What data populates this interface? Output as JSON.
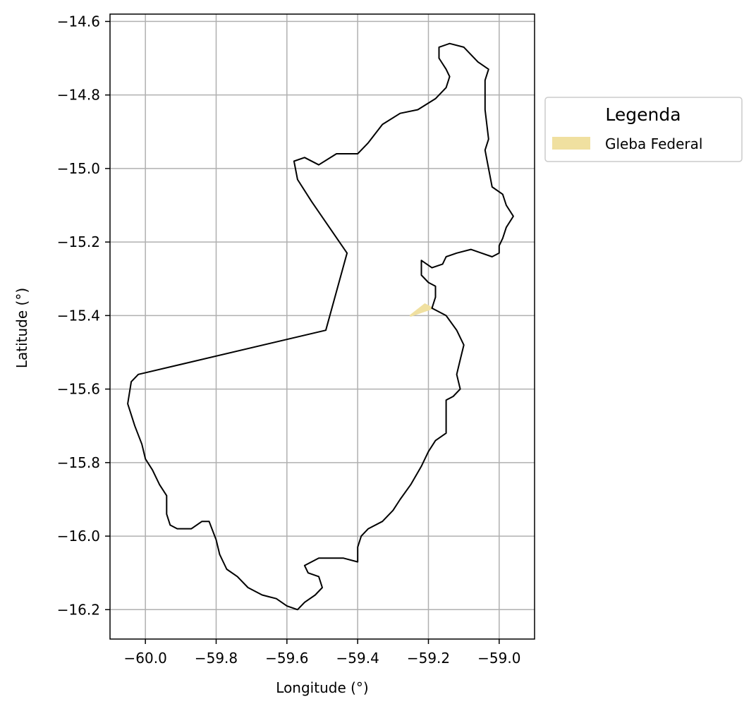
{
  "chart_data": {
    "type": "map",
    "xlabel": "Longitude (°)",
    "ylabel": "Latitude (°)",
    "xlim": [
      -60.1,
      -58.9
    ],
    "ylim": [
      -16.28,
      -14.58
    ],
    "grid": true,
    "x_ticks": [
      -60.0,
      -59.8,
      -59.6,
      -59.4,
      -59.2,
      -59.0
    ],
    "x_tick_labels": [
      "−60.0",
      "−59.8",
      "−59.6",
      "−59.4",
      "−59.2",
      "−59.0"
    ],
    "y_ticks": [
      -14.6,
      -14.8,
      -15.0,
      -15.2,
      -15.4,
      -15.6,
      -15.8,
      -16.0,
      -16.2
    ],
    "y_tick_labels": [
      "−14.6",
      "−14.8",
      "−15.0",
      "−15.2",
      "−15.4",
      "−15.6",
      "−15.8",
      "−16.0",
      "−16.2"
    ],
    "legend": {
      "title": "Legenda",
      "placement": "outside-right-top",
      "entries": [
        {
          "label": "Gleba Federal",
          "color": "#f0e0a0"
        }
      ]
    },
    "layers": [
      {
        "name": "boundary",
        "kind": "outline",
        "stroke": "#000000",
        "coords": [
          [
            -59.17,
            -14.67
          ],
          [
            -59.14,
            -14.66
          ],
          [
            -59.1,
            -14.67
          ],
          [
            -59.06,
            -14.71
          ],
          [
            -59.03,
            -14.73
          ],
          [
            -59.04,
            -14.76
          ],
          [
            -59.04,
            -14.84
          ],
          [
            -59.03,
            -14.92
          ],
          [
            -59.04,
            -14.95
          ],
          [
            -59.03,
            -15.0
          ],
          [
            -59.02,
            -15.05
          ],
          [
            -58.99,
            -15.07
          ],
          [
            -58.98,
            -15.1
          ],
          [
            -58.96,
            -15.13
          ],
          [
            -58.98,
            -15.16
          ],
          [
            -58.99,
            -15.19
          ],
          [
            -59.0,
            -15.21
          ],
          [
            -59.0,
            -15.23
          ],
          [
            -59.02,
            -15.24
          ],
          [
            -59.05,
            -15.23
          ],
          [
            -59.08,
            -15.22
          ],
          [
            -59.12,
            -15.23
          ],
          [
            -59.15,
            -15.24
          ],
          [
            -59.16,
            -15.26
          ],
          [
            -59.19,
            -15.27
          ],
          [
            -59.22,
            -15.25
          ],
          [
            -59.22,
            -15.29
          ],
          [
            -59.2,
            -15.31
          ],
          [
            -59.18,
            -15.32
          ],
          [
            -59.18,
            -15.35
          ],
          [
            -59.19,
            -15.38
          ],
          [
            -59.15,
            -15.4
          ],
          [
            -59.12,
            -15.44
          ],
          [
            -59.1,
            -15.48
          ],
          [
            -59.11,
            -15.52
          ],
          [
            -59.12,
            -15.56
          ],
          [
            -59.11,
            -15.6
          ],
          [
            -59.13,
            -15.62
          ],
          [
            -59.15,
            -15.63
          ],
          [
            -59.15,
            -15.66
          ],
          [
            -59.15,
            -15.72
          ],
          [
            -59.18,
            -15.74
          ],
          [
            -59.2,
            -15.77
          ],
          [
            -59.22,
            -15.81
          ],
          [
            -59.25,
            -15.86
          ],
          [
            -59.28,
            -15.9
          ],
          [
            -59.3,
            -15.93
          ],
          [
            -59.33,
            -15.96
          ],
          [
            -59.37,
            -15.98
          ],
          [
            -59.39,
            -16.0
          ],
          [
            -59.4,
            -16.03
          ],
          [
            -59.4,
            -16.07
          ],
          [
            -59.44,
            -16.06
          ],
          [
            -59.48,
            -16.06
          ],
          [
            -59.51,
            -16.06
          ],
          [
            -59.55,
            -16.08
          ],
          [
            -59.54,
            -16.1
          ],
          [
            -59.51,
            -16.11
          ],
          [
            -59.5,
            -16.14
          ],
          [
            -59.52,
            -16.16
          ],
          [
            -59.55,
            -16.18
          ],
          [
            -59.57,
            -16.2
          ],
          [
            -59.6,
            -16.19
          ],
          [
            -59.63,
            -16.17
          ],
          [
            -59.67,
            -16.16
          ],
          [
            -59.71,
            -16.14
          ],
          [
            -59.74,
            -16.11
          ],
          [
            -59.77,
            -16.09
          ],
          [
            -59.79,
            -16.05
          ],
          [
            -59.8,
            -16.01
          ],
          [
            -59.82,
            -15.96
          ],
          [
            -59.84,
            -15.96
          ],
          [
            -59.87,
            -15.98
          ],
          [
            -59.91,
            -15.98
          ],
          [
            -59.93,
            -15.97
          ],
          [
            -59.94,
            -15.94
          ],
          [
            -59.94,
            -15.89
          ],
          [
            -59.96,
            -15.86
          ],
          [
            -59.98,
            -15.82
          ],
          [
            -60.0,
            -15.79
          ],
          [
            -60.01,
            -15.75
          ],
          [
            -60.03,
            -15.7
          ],
          [
            -60.05,
            -15.64
          ],
          [
            -60.04,
            -15.58
          ],
          [
            -60.02,
            -15.56
          ],
          [
            -59.49,
            -15.44
          ],
          [
            -59.43,
            -15.23
          ],
          [
            -59.48,
            -15.16
          ],
          [
            -59.53,
            -15.09
          ],
          [
            -59.57,
            -15.03
          ],
          [
            -59.58,
            -14.98
          ],
          [
            -59.55,
            -14.97
          ],
          [
            -59.51,
            -14.99
          ],
          [
            -59.46,
            -14.96
          ],
          [
            -59.4,
            -14.96
          ],
          [
            -59.37,
            -14.93
          ],
          [
            -59.33,
            -14.88
          ],
          [
            -59.28,
            -14.85
          ],
          [
            -59.23,
            -14.84
          ],
          [
            -59.18,
            -14.81
          ],
          [
            -59.15,
            -14.78
          ],
          [
            -59.14,
            -14.75
          ],
          [
            -59.15,
            -14.73
          ],
          [
            -59.17,
            -14.7
          ],
          [
            -59.17,
            -14.67
          ]
        ]
      },
      {
        "name": "Gleba Federal",
        "kind": "fill",
        "fill": "#f0e0a0",
        "coords": [
          [
            -59.25,
            -15.4
          ],
          [
            -59.21,
            -15.37
          ],
          [
            -59.19,
            -15.38
          ],
          [
            -59.22,
            -15.39
          ],
          [
            -59.25,
            -15.4
          ]
        ]
      }
    ]
  }
}
